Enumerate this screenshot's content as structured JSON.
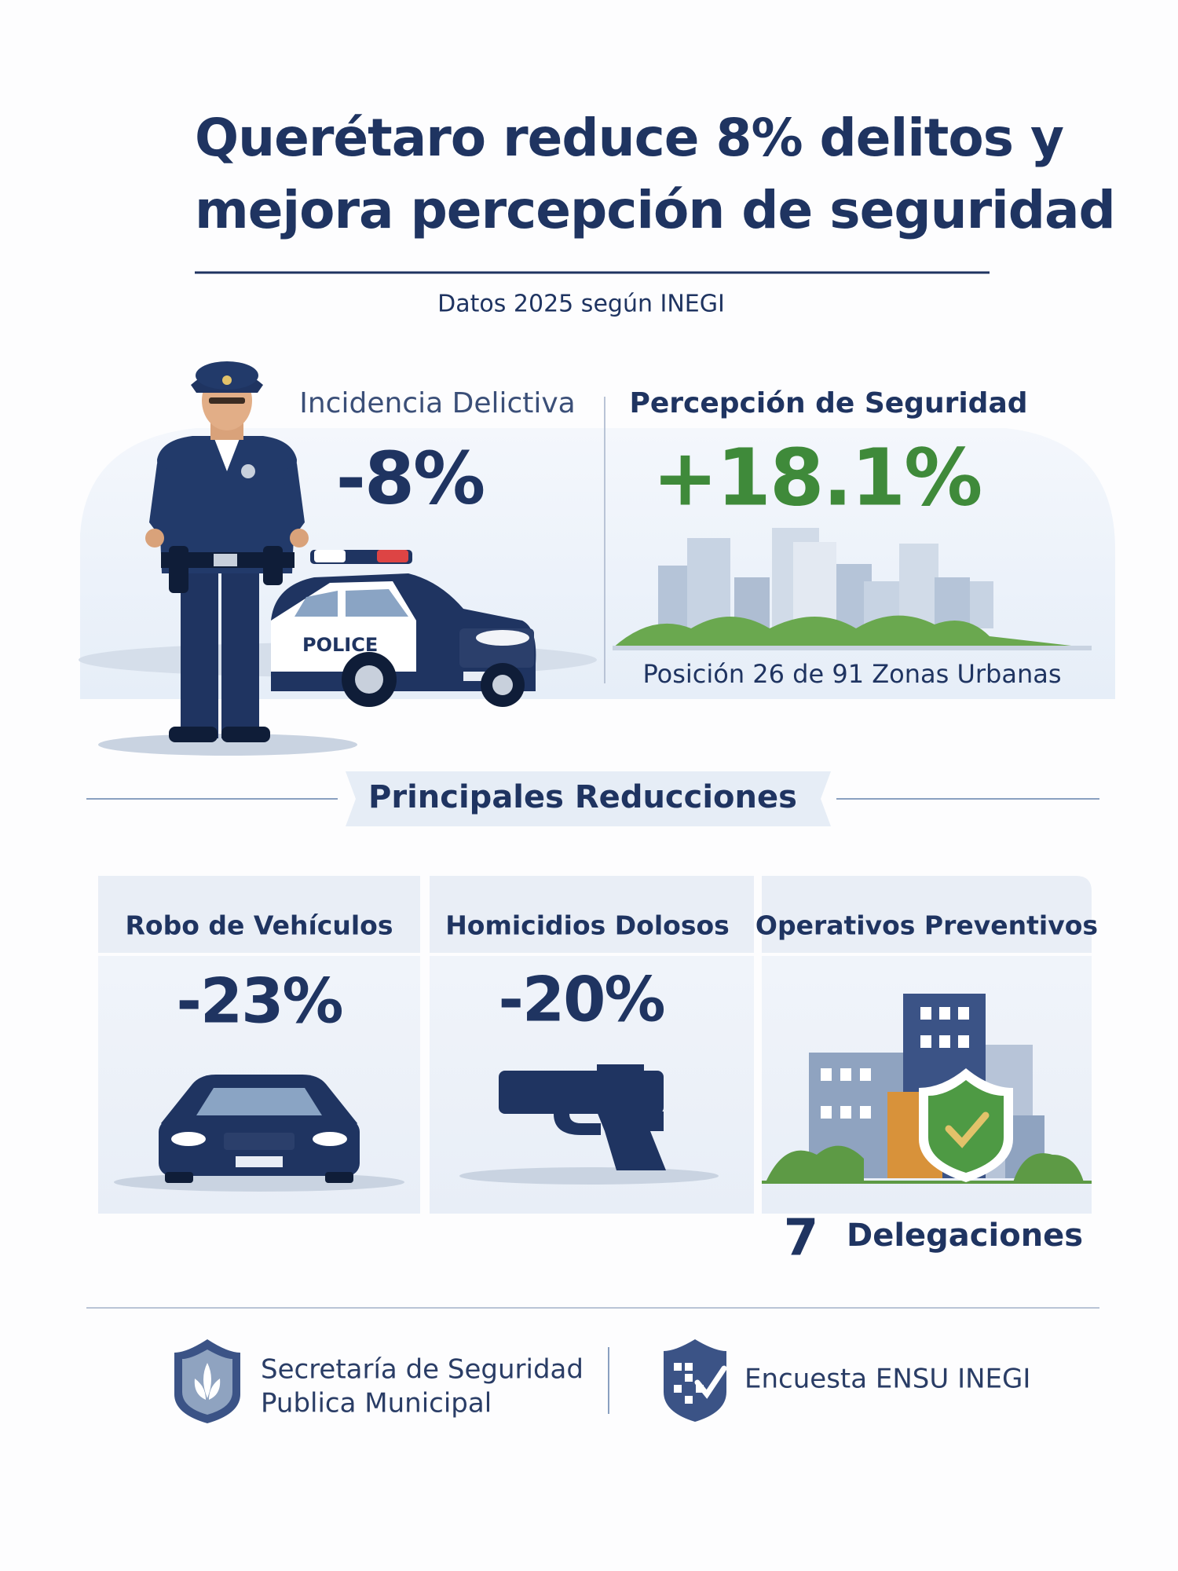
{
  "header": {
    "title_lines": [
      "Querétaro reduce 8% delitos y",
      "mejora percepción de seguridad"
    ],
    "subtitle": "Datos 2025 según INEGI"
  },
  "highlights": [
    {
      "label": "Incidencia Delictiva",
      "value": "-8%",
      "illustration_text": "POLICE"
    },
    {
      "label": "Percepción de Seguridad",
      "value": "+18.1%",
      "note": "Posición 26 de 91 Zonas Urbanas"
    }
  ],
  "section_title": "Principales Reducciones",
  "cards": [
    {
      "label": "Robo de Vehículos",
      "value": "-23%"
    },
    {
      "label": "Homicidios Dolosos",
      "value": "-20%"
    },
    {
      "label": "Operativos Preventivos",
      "value": "7",
      "unit": "Delegaciones"
    }
  ],
  "footer": [
    {
      "lines": [
        "Secretaría de Seguridad",
        "Publica Municipal"
      ]
    },
    {
      "lines": [
        "Encuesta ENSU  INEGI"
      ]
    }
  ]
}
